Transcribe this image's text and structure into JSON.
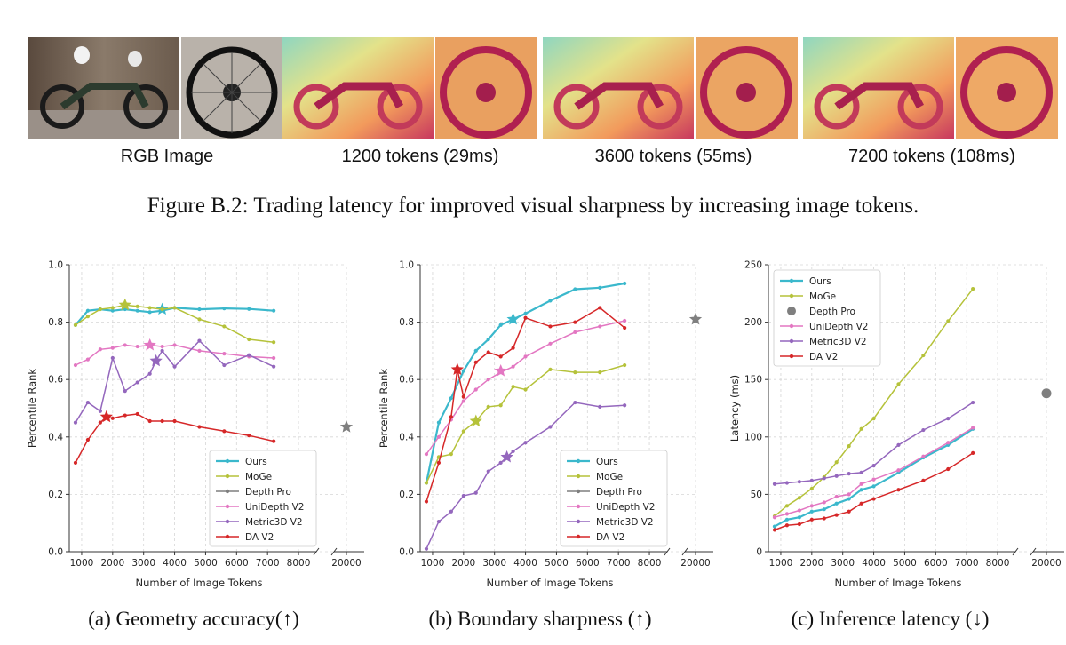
{
  "figure": {
    "caption": "Figure B.2: Trading latency for improved visual sharpness by increasing image tokens.",
    "thumbnails": [
      {
        "label": "RGB Image",
        "kind": "rgb"
      },
      {
        "label": "1200 tokens (29ms)",
        "kind": "depth"
      },
      {
        "label": "3600 tokens (55ms)",
        "kind": "depth"
      },
      {
        "label": "7200 tokens (108ms)",
        "kind": "depth"
      }
    ]
  },
  "colors": {
    "Ours": "#3bb8cc",
    "MoGe": "#b5c23a",
    "Depth Pro": "#7f7f7f",
    "UniDepth V2": "#e377c2",
    "Metric3D V2": "#9467bd",
    "DA V2": "#d62728"
  },
  "chart_data": [
    {
      "id": "a",
      "type": "line",
      "caption": "(a) Geometry accuracy(↑)",
      "xlabel": "Number of Image Tokens",
      "ylabel": "Percentile Rank",
      "ylim": [
        0,
        1
      ],
      "yticks": [
        "0.0",
        "0.2",
        "0.4",
        "0.6",
        "0.8",
        "1.0"
      ],
      "ytick_values": [
        0,
        0.2,
        0.4,
        0.6,
        0.8,
        1.0
      ],
      "xticks": [
        "1000",
        "2000",
        "3000",
        "4000",
        "5000",
        "6000",
        "7000",
        "8000"
      ],
      "xbreak_tick": "20000",
      "legend": [
        "Ours",
        "MoGe",
        "Depth Pro",
        "UniDepth V2",
        "Metric3D V2",
        "DA V2"
      ],
      "legend_position": "lower-right",
      "series": [
        {
          "name": "Ours",
          "x": [
            800,
            1200,
            1600,
            2000,
            2400,
            2800,
            3200,
            3600,
            4000,
            4800,
            5600,
            6400,
            7200
          ],
          "y": [
            0.79,
            0.84,
            0.845,
            0.84,
            0.845,
            0.84,
            0.835,
            0.84,
            0.85,
            0.845,
            0.848,
            0.846,
            0.84
          ],
          "star": [
            3600,
            0.845
          ]
        },
        {
          "name": "MoGe",
          "x": [
            800,
            1200,
            1600,
            2000,
            2400,
            2800,
            3200,
            3600,
            4000,
            4800,
            5600,
            6400,
            7200
          ],
          "y": [
            0.79,
            0.82,
            0.845,
            0.85,
            0.86,
            0.855,
            0.85,
            0.845,
            0.85,
            0.81,
            0.785,
            0.74,
            0.73
          ],
          "star": [
            2400,
            0.86
          ]
        },
        {
          "name": "Depth Pro",
          "x": [],
          "y": [],
          "star_break": 0.435
        },
        {
          "name": "UniDepth V2",
          "x": [
            800,
            1200,
            1600,
            2000,
            2400,
            2800,
            3200,
            3600,
            4000,
            4800,
            5600,
            6400,
            7200
          ],
          "y": [
            0.65,
            0.67,
            0.705,
            0.71,
            0.72,
            0.715,
            0.72,
            0.715,
            0.72,
            0.7,
            0.69,
            0.68,
            0.675
          ],
          "star": [
            3200,
            0.72
          ]
        },
        {
          "name": "Metric3D V2",
          "x": [
            800,
            1200,
            1600,
            2000,
            2400,
            2800,
            3200,
            3400,
            3600,
            4000,
            4800,
            5600,
            6400,
            7200
          ],
          "y": [
            0.45,
            0.52,
            0.49,
            0.675,
            0.56,
            0.59,
            0.62,
            0.665,
            0.7,
            0.645,
            0.735,
            0.65,
            0.685,
            0.645
          ],
          "star": [
            3400,
            0.665
          ]
        },
        {
          "name": "DA V2",
          "x": [
            800,
            1200,
            1600,
            1800,
            2000,
            2400,
            2800,
            3200,
            3600,
            4000,
            4800,
            5600,
            6400,
            7200
          ],
          "y": [
            0.31,
            0.39,
            0.45,
            0.47,
            0.465,
            0.475,
            0.48,
            0.455,
            0.455,
            0.455,
            0.435,
            0.42,
            0.405,
            0.385
          ],
          "star": [
            1800,
            0.47
          ]
        }
      ]
    },
    {
      "id": "b",
      "type": "line",
      "caption": "(b) Boundary sharpness (↑)",
      "xlabel": "Number of Image Tokens",
      "ylabel": "Percentile Rank",
      "ylim": [
        0,
        1
      ],
      "yticks": [
        "0.0",
        "0.2",
        "0.4",
        "0.6",
        "0.8",
        "1.0"
      ],
      "ytick_values": [
        0,
        0.2,
        0.4,
        0.6,
        0.8,
        1.0
      ],
      "xticks": [
        "1000",
        "2000",
        "3000",
        "4000",
        "5000",
        "6000",
        "7000",
        "8000"
      ],
      "xbreak_tick": "20000",
      "legend": [
        "Ours",
        "MoGe",
        "Depth Pro",
        "UniDepth V2",
        "Metric3D V2",
        "DA V2"
      ],
      "legend_position": "lower-right",
      "series": [
        {
          "name": "Ours",
          "x": [
            800,
            1200,
            1600,
            2000,
            2400,
            2800,
            3200,
            3600,
            4000,
            4800,
            5600,
            6400,
            7200
          ],
          "y": [
            0.24,
            0.45,
            0.535,
            0.63,
            0.7,
            0.74,
            0.79,
            0.81,
            0.83,
            0.875,
            0.915,
            0.92,
            0.935
          ],
          "star": [
            3600,
            0.81
          ]
        },
        {
          "name": "MoGe",
          "x": [
            800,
            1200,
            1600,
            2000,
            2400,
            2800,
            3200,
            3600,
            4000,
            4800,
            5600,
            6400,
            7200
          ],
          "y": [
            0.24,
            0.33,
            0.34,
            0.42,
            0.455,
            0.505,
            0.51,
            0.575,
            0.565,
            0.635,
            0.625,
            0.625,
            0.65
          ],
          "star": [
            2400,
            0.455
          ]
        },
        {
          "name": "Depth Pro",
          "x": [],
          "y": [],
          "star_break": 0.81
        },
        {
          "name": "UniDepth V2",
          "x": [
            800,
            1200,
            1600,
            2000,
            2400,
            2800,
            3200,
            3600,
            4000,
            4800,
            5600,
            6400,
            7200
          ],
          "y": [
            0.34,
            0.4,
            0.46,
            0.525,
            0.565,
            0.6,
            0.625,
            0.645,
            0.68,
            0.725,
            0.765,
            0.785,
            0.805
          ],
          "star": [
            3200,
            0.63
          ]
        },
        {
          "name": "Metric3D V2",
          "x": [
            800,
            1200,
            1600,
            2000,
            2400,
            2800,
            3200,
            3400,
            3600,
            4000,
            4800,
            5600,
            6400,
            7200
          ],
          "y": [
            0.01,
            0.105,
            0.14,
            0.195,
            0.205,
            0.28,
            0.31,
            0.33,
            0.35,
            0.38,
            0.435,
            0.52,
            0.505,
            0.51
          ],
          "star": [
            3400,
            0.33
          ]
        },
        {
          "name": "DA V2",
          "x": [
            800,
            1200,
            1600,
            1800,
            2000,
            2400,
            2800,
            3200,
            3600,
            4000,
            4800,
            5600,
            6400,
            7200
          ],
          "y": [
            0.175,
            0.31,
            0.47,
            0.635,
            0.54,
            0.66,
            0.695,
            0.68,
            0.71,
            0.815,
            0.785,
            0.8,
            0.85,
            0.78
          ],
          "star": [
            1800,
            0.635
          ]
        }
      ]
    },
    {
      "id": "c",
      "type": "line",
      "caption": "(c) Inference latency (↓)",
      "xlabel": "Number of Image Tokens",
      "ylabel": "Latency (ms)",
      "ylim": [
        0,
        250
      ],
      "yticks": [
        "0",
        "50",
        "100",
        "150",
        "200",
        "250"
      ],
      "ytick_values": [
        0,
        50,
        100,
        150,
        200,
        250
      ],
      "xticks": [
        "1000",
        "2000",
        "3000",
        "4000",
        "5000",
        "6000",
        "7000",
        "8000"
      ],
      "xbreak_tick": "20000",
      "legend": [
        "Ours",
        "MoGe",
        "Depth Pro",
        "UniDepth V2",
        "Metric3D V2",
        "DA V2"
      ],
      "legend_position": "upper-left",
      "series": [
        {
          "name": "Ours",
          "x": [
            800,
            1200,
            1600,
            2000,
            2400,
            2800,
            3200,
            3600,
            4000,
            4800,
            5600,
            6400,
            7200
          ],
          "y": [
            22,
            28,
            30,
            35,
            37,
            42,
            46,
            54,
            57,
            69,
            82,
            93,
            107
          ]
        },
        {
          "name": "MoGe",
          "x": [
            800,
            1200,
            1600,
            2000,
            2400,
            2800,
            3200,
            3600,
            4000,
            4800,
            5600,
            6400,
            7200
          ],
          "y": [
            31,
            40,
            47,
            55,
            65,
            78,
            92,
            107,
            116,
            146,
            171,
            201,
            229
          ]
        },
        {
          "name": "Depth Pro",
          "x": [],
          "y": [],
          "dot_break": 138
        },
        {
          "name": "UniDepth V2",
          "x": [
            800,
            1200,
            1600,
            2000,
            2400,
            2800,
            3200,
            3600,
            4000,
            4800,
            5600,
            6400,
            7200
          ],
          "y": [
            30,
            33,
            36,
            40,
            43,
            48,
            50,
            59,
            63,
            71,
            83,
            95,
            108
          ]
        },
        {
          "name": "Metric3D V2",
          "x": [
            800,
            1200,
            1600,
            2000,
            2400,
            2800,
            3200,
            3600,
            4000,
            4800,
            5600,
            6400,
            7200
          ],
          "y": [
            59,
            60,
            61,
            62,
            64,
            66,
            68,
            69,
            75,
            93,
            106,
            116,
            130
          ]
        },
        {
          "name": "DA V2",
          "x": [
            800,
            1200,
            1600,
            2000,
            2400,
            2800,
            3200,
            3600,
            4000,
            4800,
            5600,
            6400,
            7200
          ],
          "y": [
            19,
            23,
            24,
            28,
            29,
            32,
            35,
            42,
            46,
            54,
            62,
            72,
            86
          ]
        }
      ]
    }
  ]
}
